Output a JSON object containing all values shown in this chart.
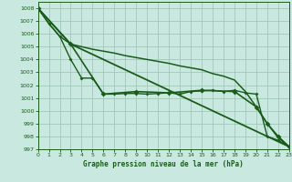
{
  "title": "Graphe pression niveau de la mer (hPa)",
  "bg": "#c8e8e0",
  "grid_color": "#a0c8b8",
  "line_color": "#1a5c1a",
  "xlim": [
    0,
    23
  ],
  "ylim": [
    997,
    1008.5
  ],
  "xticks": [
    0,
    1,
    2,
    3,
    4,
    5,
    6,
    7,
    8,
    9,
    10,
    11,
    12,
    13,
    14,
    15,
    16,
    17,
    18,
    19,
    20,
    21,
    22,
    23
  ],
  "yticks": [
    997,
    998,
    999,
    1000,
    1001,
    1002,
    1003,
    1004,
    1005,
    1006,
    1007,
    1008
  ],
  "line1_x": [
    0,
    1,
    2,
    3,
    4,
    5,
    6,
    7,
    8,
    9,
    10,
    11,
    12,
    13,
    14,
    15,
    16,
    17,
    18,
    19,
    20,
    21,
    22,
    23
  ],
  "line1_y": [
    1008,
    1006.8,
    1005.8,
    1005.2,
    1005.0,
    1004.8,
    1004.65,
    1004.5,
    1004.3,
    1004.15,
    1004.0,
    1003.85,
    1003.7,
    1003.5,
    1003.35,
    1003.2,
    1002.9,
    1002.7,
    1002.4,
    1001.5,
    1000.3,
    999.0,
    997.9,
    997.2
  ],
  "line2_x": [
    0,
    1,
    2,
    3,
    4,
    5,
    6,
    7,
    8,
    9,
    10,
    11,
    12,
    13,
    14,
    15,
    16,
    17,
    18,
    19,
    20,
    21,
    22,
    23
  ],
  "line2_y": [
    1008,
    1006.8,
    1005.8,
    1004.0,
    1002.55,
    1002.55,
    1001.3,
    1001.3,
    1001.35,
    1001.35,
    1001.3,
    1001.35,
    1001.4,
    1001.3,
    1001.5,
    1001.55,
    1001.6,
    1001.5,
    1001.6,
    1001.4,
    1001.3,
    998.0,
    997.7,
    997.2
  ],
  "line3_x": [
    0,
    3,
    23
  ],
  "line3_y": [
    1008,
    1005.2,
    997.2
  ],
  "line4_x": [
    0,
    3,
    6,
    9,
    12,
    15,
    18,
    20,
    21,
    22,
    23
  ],
  "line4_y": [
    1008,
    1005.2,
    1001.3,
    1001.5,
    1001.4,
    1001.6,
    1001.5,
    1000.3,
    999.0,
    998.0,
    997.2
  ]
}
